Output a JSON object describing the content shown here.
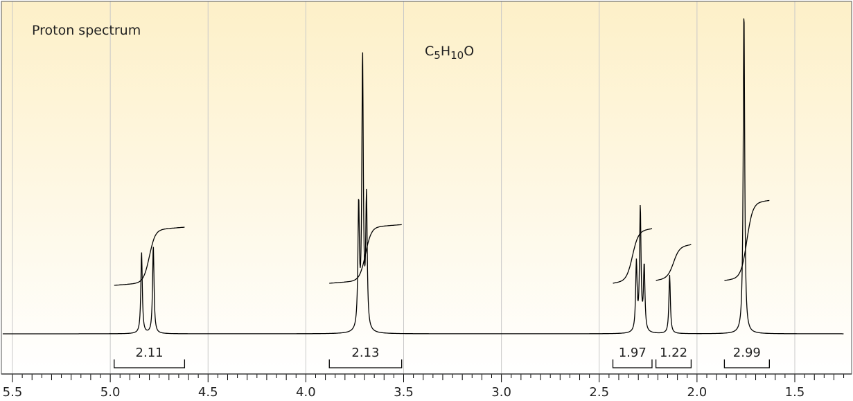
{
  "chart_data": {
    "type": "line",
    "title": "Proton spectrum",
    "formula": {
      "base1": "C",
      "sub1": "5",
      "base2": "H",
      "sub2": "10",
      "base3": "O"
    },
    "xlabel": "",
    "ylabel": "",
    "x_reversed": true,
    "xlim": [
      5.55,
      1.25
    ],
    "x_ticks": [
      "5.5",
      "5.0",
      "4.5",
      "4.0",
      "3.5",
      "3.0",
      "2.5",
      "2.0",
      "1.5"
    ],
    "x_tick_values": [
      5.5,
      5.0,
      4.5,
      4.0,
      3.5,
      3.0,
      2.5,
      2.0,
      1.5
    ],
    "grid": true,
    "peaks": [
      {
        "ppm": 4.84,
        "height": 0.25
      },
      {
        "ppm": 4.78,
        "height": 0.27
      },
      {
        "ppm": 3.73,
        "height": 0.38
      },
      {
        "ppm": 3.71,
        "height": 0.84
      },
      {
        "ppm": 3.69,
        "height": 0.4
      },
      {
        "ppm": 2.31,
        "height": 0.21
      },
      {
        "ppm": 2.29,
        "height": 0.38
      },
      {
        "ppm": 2.27,
        "height": 0.2
      },
      {
        "ppm": 2.14,
        "height": 0.18
      },
      {
        "ppm": 1.76,
        "height": 1.0
      }
    ],
    "integrals": [
      {
        "from": 4.98,
        "to": 4.62,
        "value": "2.11"
      },
      {
        "from": 3.88,
        "to": 3.51,
        "value": "2.13"
      },
      {
        "from": 2.43,
        "to": 2.23,
        "value": "1.97"
      },
      {
        "from": 2.21,
        "to": 2.03,
        "value": "1.22"
      },
      {
        "from": 1.86,
        "to": 1.63,
        "value": "2.99"
      }
    ],
    "colors": {
      "background_top": "#fdf0c8",
      "background_bottom": "#ffffff",
      "trace": "#000000",
      "grid": "#c8c8c8"
    }
  }
}
